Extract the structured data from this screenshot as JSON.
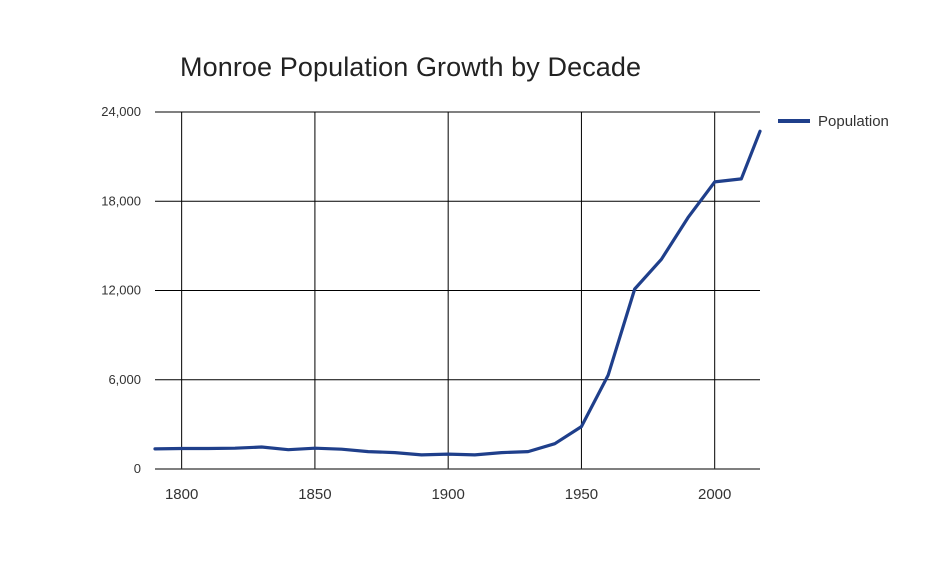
{
  "chart_data": {
    "type": "line",
    "title": "Monroe Population Growth by Decade",
    "xlabel": "",
    "ylabel": "",
    "x": [
      1790,
      1800,
      1810,
      1820,
      1830,
      1840,
      1850,
      1860,
      1870,
      1880,
      1890,
      1900,
      1910,
      1920,
      1930,
      1940,
      1950,
      1960,
      1970,
      1980,
      1990,
      2000,
      2010,
      2017
    ],
    "series": [
      {
        "name": "Population",
        "color": "#1f3f8b",
        "values": [
          1350,
          1380,
          1380,
          1400,
          1480,
          1300,
          1400,
          1330,
          1170,
          1100,
          950,
          1000,
          950,
          1100,
          1170,
          1700,
          2850,
          6300,
          12100,
          14100,
          16900,
          19300,
          19500,
          22700
        ]
      }
    ],
    "xlim": [
      1790,
      2017
    ],
    "ylim": [
      0,
      24000
    ],
    "x_ticks": [
      1800,
      1850,
      1900,
      1950,
      2000
    ],
    "x_tick_labels": [
      "1800",
      "1850",
      "1900",
      "1950",
      "2000"
    ],
    "y_ticks": [
      0,
      6000,
      12000,
      18000,
      24000
    ],
    "y_tick_labels": [
      "0",
      "6,000",
      "12,000",
      "18,000",
      "24,000"
    ],
    "grid": true,
    "legend_position": "top-right"
  }
}
